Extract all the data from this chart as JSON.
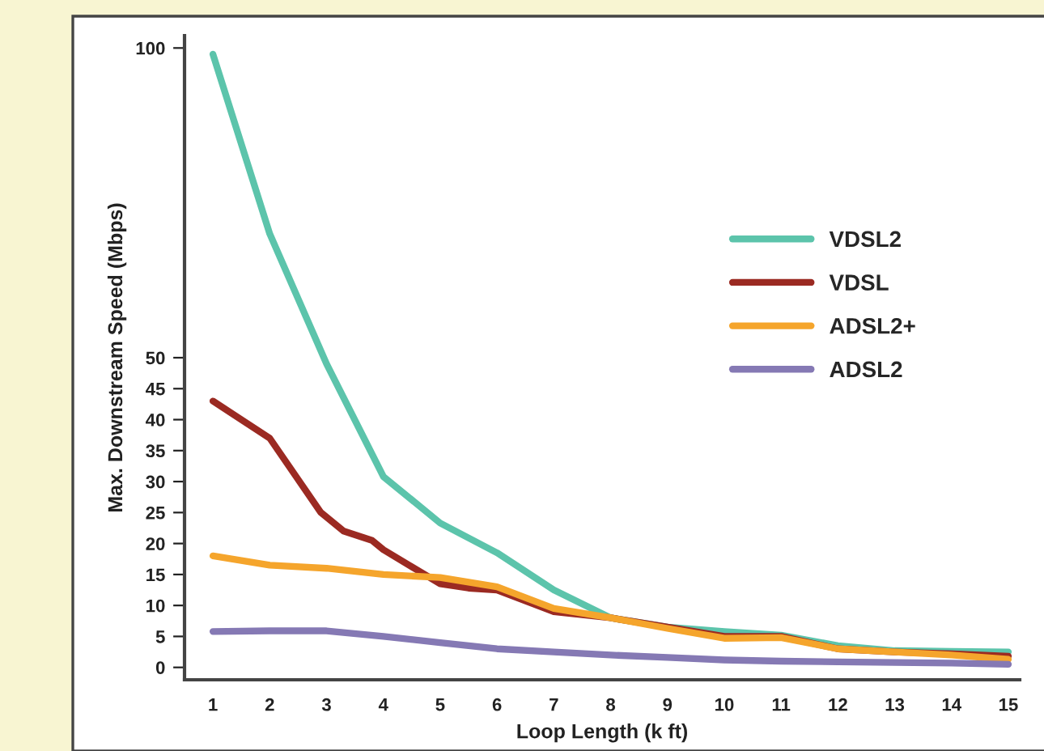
{
  "chart_data": {
    "type": "line",
    "xlabel": "Loop Length (k ft)",
    "ylabel": "Max. Downstream Speed (Mbps)",
    "series": [
      {
        "name": "VDSL2",
        "color": "#5cc4ab",
        "x": [
          1,
          2,
          3,
          4,
          5,
          6,
          7,
          8,
          9,
          10,
          11,
          12,
          13,
          14,
          15
        ],
        "values": [
          99,
          70,
          49,
          30.8,
          23.3,
          18.5,
          12.5,
          8,
          6.5,
          5.8,
          5.2,
          3.5,
          2.7,
          2.6,
          2.5
        ]
      },
      {
        "name": "VDSL",
        "color": "#9b2a22",
        "x": [
          1,
          2,
          2.9,
          3.3,
          3.8,
          4,
          5,
          5.5,
          6,
          7,
          8,
          9,
          10,
          11,
          12,
          13,
          14,
          15
        ],
        "values": [
          43,
          37,
          25,
          22,
          20.5,
          19,
          13.5,
          12.8,
          12.5,
          9,
          8,
          6.5,
          5,
          5,
          3,
          2.5,
          2.2,
          1.8
        ]
      },
      {
        "name": "ADSL2+",
        "color": "#f5a52c",
        "x": [
          1,
          2,
          3,
          4,
          5,
          6,
          7,
          8,
          9,
          10,
          11,
          12,
          13,
          14,
          15
        ],
        "values": [
          18,
          16.5,
          16,
          15,
          14.5,
          13,
          9.5,
          8,
          6.3,
          4.7,
          4.8,
          3,
          2.5,
          2,
          1.3
        ]
      },
      {
        "name": "ADSL2",
        "color": "#8579b4",
        "x": [
          1,
          2,
          3,
          4,
          5,
          6,
          7,
          8,
          9,
          10,
          11,
          12,
          13,
          14,
          15
        ],
        "values": [
          5.8,
          5.9,
          5.9,
          5,
          4,
          3,
          2.5,
          2,
          1.6,
          1.2,
          1,
          0.9,
          0.8,
          0.7,
          0.5
        ]
      }
    ],
    "xlim": [
      0.5,
      15.2
    ],
    "xticks": [
      1,
      2,
      3,
      4,
      5,
      6,
      7,
      8,
      9,
      10,
      11,
      12,
      13,
      14,
      15
    ],
    "ylim": [
      -2,
      102
    ],
    "yticks": [
      0,
      5,
      10,
      15,
      20,
      25,
      30,
      35,
      40,
      45,
      50,
      100
    ],
    "legend": "right",
    "grid": false
  }
}
